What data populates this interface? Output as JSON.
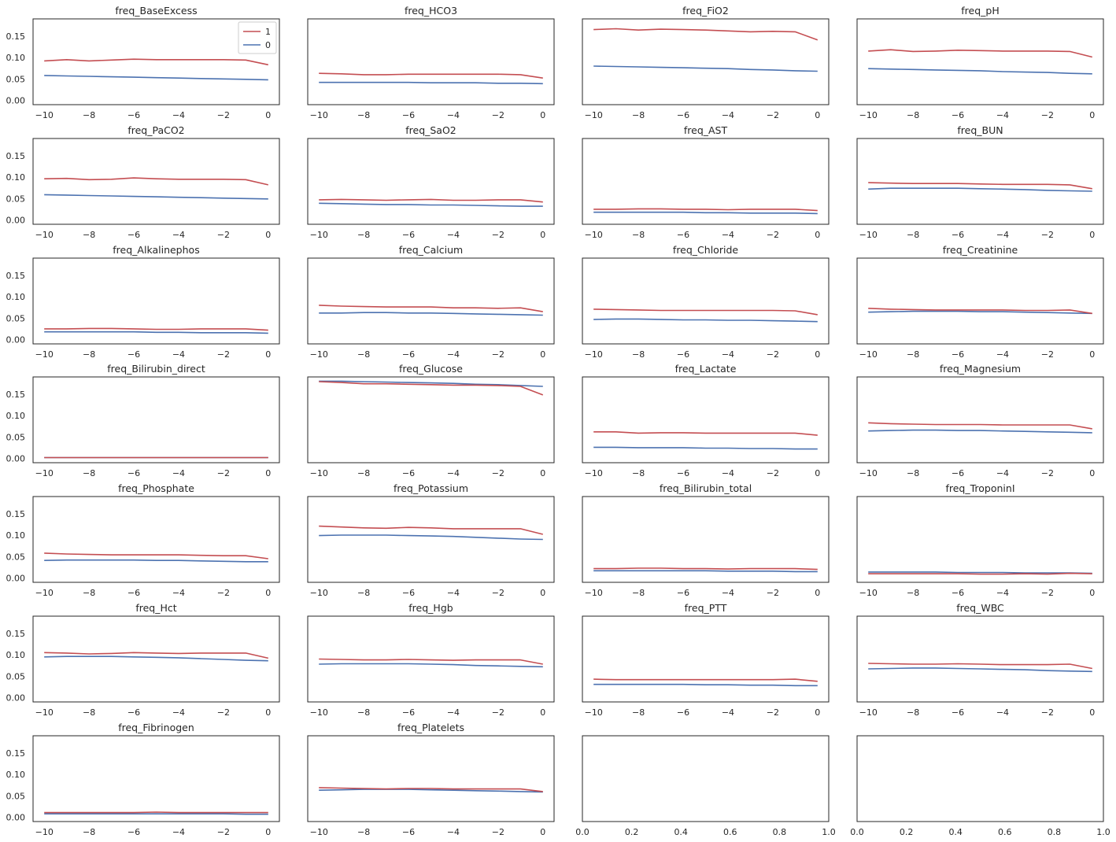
{
  "chart_data": {
    "type": "line",
    "layout_rows": 7,
    "layout_cols": 4,
    "shared_ylim": [
      -0.01,
      0.19
    ],
    "yticks": [
      "0.00",
      "0.05",
      "0.10",
      "0.15"
    ],
    "ytick_values": [
      0.0,
      0.05,
      0.1,
      0.15
    ],
    "grid": false,
    "legend": {
      "placement": "upper-right",
      "panel": 0,
      "entries": [
        {
          "label": "1",
          "color": "#c44e52"
        },
        {
          "label": "0",
          "color": "#4c72b0"
        }
      ]
    },
    "series_colors": {
      "1": "#c44e52",
      "0": "#4c72b0"
    },
    "x": [
      -10,
      -9,
      -8,
      -7,
      -6,
      -5,
      -4,
      -3,
      -2,
      -1,
      0
    ],
    "xticks": [
      "−10",
      "−8",
      "−6",
      "−4",
      "−2",
      "0"
    ],
    "xtick_values": [
      -10,
      -8,
      -6,
      -4,
      -2,
      0
    ],
    "xlim": [
      -10.5,
      0.5
    ],
    "empty_xticks": [
      "0.0",
      "0.2",
      "0.4",
      "0.6",
      "0.8",
      "1.0"
    ],
    "empty_xtick_values": [
      0,
      0.2,
      0.4,
      0.6,
      0.8,
      1.0
    ],
    "empty_xlim": [
      0,
      1
    ],
    "panels": [
      {
        "title": "freq_BaseExcess",
        "s1": [
          0.092,
          0.095,
          0.092,
          0.094,
          0.096,
          0.095,
          0.095,
          0.095,
          0.095,
          0.094,
          0.083
        ],
        "s0": [
          0.058,
          0.057,
          0.056,
          0.055,
          0.054,
          0.053,
          0.052,
          0.051,
          0.05,
          0.049,
          0.048
        ]
      },
      {
        "title": "freq_HCO3",
        "s1": [
          0.063,
          0.062,
          0.06,
          0.06,
          0.061,
          0.061,
          0.061,
          0.061,
          0.061,
          0.06,
          0.052
        ],
        "s0": [
          0.042,
          0.042,
          0.042,
          0.042,
          0.042,
          0.041,
          0.041,
          0.041,
          0.04,
          0.04,
          0.039
        ]
      },
      {
        "title": "freq_FiO2",
        "s1": [
          0.165,
          0.167,
          0.164,
          0.166,
          0.165,
          0.164,
          0.162,
          0.16,
          0.161,
          0.16,
          0.141
        ],
        "s0": [
          0.08,
          0.079,
          0.078,
          0.077,
          0.076,
          0.075,
          0.074,
          0.072,
          0.071,
          0.069,
          0.068
        ]
      },
      {
        "title": "freq_pH",
        "s1": [
          0.115,
          0.118,
          0.114,
          0.115,
          0.117,
          0.116,
          0.115,
          0.115,
          0.115,
          0.114,
          0.101
        ],
        "s0": [
          0.074,
          0.073,
          0.072,
          0.071,
          0.07,
          0.069,
          0.067,
          0.066,
          0.065,
          0.063,
          0.062
        ]
      },
      {
        "title": "freq_PaCO2",
        "s1": [
          0.096,
          0.097,
          0.094,
          0.095,
          0.098,
          0.096,
          0.095,
          0.095,
          0.095,
          0.094,
          0.082
        ],
        "s0": [
          0.059,
          0.058,
          0.057,
          0.056,
          0.055,
          0.054,
          0.053,
          0.052,
          0.051,
          0.05,
          0.049
        ]
      },
      {
        "title": "freq_SaO2",
        "s1": [
          0.047,
          0.048,
          0.047,
          0.046,
          0.047,
          0.048,
          0.046,
          0.046,
          0.047,
          0.047,
          0.042
        ],
        "s0": [
          0.039,
          0.038,
          0.037,
          0.036,
          0.036,
          0.035,
          0.035,
          0.034,
          0.033,
          0.032,
          0.032
        ]
      },
      {
        "title": "freq_AST",
        "s1": [
          0.025,
          0.025,
          0.026,
          0.026,
          0.025,
          0.025,
          0.024,
          0.025,
          0.025,
          0.025,
          0.022
        ],
        "s0": [
          0.018,
          0.018,
          0.018,
          0.018,
          0.018,
          0.017,
          0.017,
          0.016,
          0.016,
          0.016,
          0.015
        ]
      },
      {
        "title": "freq_BUN",
        "s1": [
          0.087,
          0.086,
          0.085,
          0.085,
          0.085,
          0.084,
          0.083,
          0.083,
          0.083,
          0.082,
          0.073
        ],
        "s0": [
          0.072,
          0.074,
          0.074,
          0.074,
          0.074,
          0.073,
          0.072,
          0.071,
          0.069,
          0.068,
          0.067
        ]
      },
      {
        "title": "freq_Alkalinephos",
        "s1": [
          0.025,
          0.025,
          0.026,
          0.026,
          0.025,
          0.024,
          0.024,
          0.025,
          0.025,
          0.025,
          0.022
        ],
        "s0": [
          0.018,
          0.018,
          0.018,
          0.018,
          0.018,
          0.017,
          0.017,
          0.016,
          0.016,
          0.016,
          0.015
        ]
      },
      {
        "title": "freq_Calcium",
        "s1": [
          0.08,
          0.078,
          0.077,
          0.076,
          0.076,
          0.076,
          0.074,
          0.074,
          0.073,
          0.074,
          0.065
        ],
        "s0": [
          0.062,
          0.062,
          0.063,
          0.063,
          0.062,
          0.062,
          0.061,
          0.06,
          0.059,
          0.058,
          0.057
        ]
      },
      {
        "title": "freq_Chloride",
        "s1": [
          0.071,
          0.07,
          0.069,
          0.068,
          0.068,
          0.068,
          0.068,
          0.068,
          0.068,
          0.067,
          0.058
        ],
        "s0": [
          0.047,
          0.048,
          0.048,
          0.047,
          0.046,
          0.046,
          0.045,
          0.045,
          0.044,
          0.043,
          0.042
        ]
      },
      {
        "title": "freq_Creatinine",
        "s1": [
          0.073,
          0.071,
          0.07,
          0.069,
          0.069,
          0.069,
          0.069,
          0.068,
          0.068,
          0.069,
          0.061
        ],
        "s0": [
          0.064,
          0.065,
          0.066,
          0.066,
          0.066,
          0.065,
          0.065,
          0.064,
          0.063,
          0.062,
          0.061
        ]
      },
      {
        "title": "freq_Bilirubin_direct",
        "s1": [
          0.002,
          0.002,
          0.002,
          0.002,
          0.002,
          0.002,
          0.002,
          0.002,
          0.002,
          0.002,
          0.002
        ],
        "s0": [
          0.002,
          0.002,
          0.002,
          0.002,
          0.002,
          0.002,
          0.002,
          0.002,
          0.002,
          0.002,
          0.002
        ]
      },
      {
        "title": "freq_Glucose",
        "s1": [
          0.179,
          0.177,
          0.174,
          0.174,
          0.173,
          0.172,
          0.171,
          0.171,
          0.17,
          0.168,
          0.148
        ],
        "s0": [
          0.18,
          0.18,
          0.179,
          0.178,
          0.177,
          0.176,
          0.175,
          0.173,
          0.172,
          0.17,
          0.168
        ]
      },
      {
        "title": "freq_Lactate",
        "s1": [
          0.062,
          0.062,
          0.059,
          0.06,
          0.06,
          0.059,
          0.059,
          0.059,
          0.059,
          0.059,
          0.054
        ],
        "s0": [
          0.026,
          0.026,
          0.025,
          0.025,
          0.025,
          0.024,
          0.024,
          0.023,
          0.023,
          0.022,
          0.022
        ]
      },
      {
        "title": "freq_Magnesium",
        "s1": [
          0.083,
          0.081,
          0.08,
          0.079,
          0.079,
          0.079,
          0.078,
          0.078,
          0.078,
          0.078,
          0.069
        ],
        "s0": [
          0.064,
          0.065,
          0.066,
          0.066,
          0.065,
          0.065,
          0.064,
          0.063,
          0.062,
          0.061,
          0.06
        ]
      },
      {
        "title": "freq_Phosphate",
        "s1": [
          0.058,
          0.056,
          0.055,
          0.054,
          0.054,
          0.054,
          0.054,
          0.053,
          0.052,
          0.052,
          0.045
        ],
        "s0": [
          0.041,
          0.042,
          0.042,
          0.042,
          0.042,
          0.041,
          0.041,
          0.04,
          0.039,
          0.038,
          0.038
        ]
      },
      {
        "title": "freq_Potassium",
        "s1": [
          0.121,
          0.119,
          0.117,
          0.116,
          0.118,
          0.117,
          0.115,
          0.115,
          0.115,
          0.115,
          0.102
        ],
        "s0": [
          0.099,
          0.1,
          0.1,
          0.1,
          0.099,
          0.098,
          0.097,
          0.095,
          0.093,
          0.091,
          0.09
        ]
      },
      {
        "title": "freq_Bilirubin_total",
        "s1": [
          0.022,
          0.022,
          0.023,
          0.023,
          0.022,
          0.022,
          0.021,
          0.022,
          0.022,
          0.022,
          0.02
        ],
        "s0": [
          0.017,
          0.017,
          0.017,
          0.017,
          0.017,
          0.017,
          0.016,
          0.016,
          0.016,
          0.015,
          0.015
        ]
      },
      {
        "title": "freq_TroponinI",
        "s1": [
          0.01,
          0.01,
          0.01,
          0.01,
          0.01,
          0.009,
          0.009,
          0.01,
          0.009,
          0.011,
          0.01
        ],
        "s0": [
          0.014,
          0.014,
          0.014,
          0.014,
          0.013,
          0.013,
          0.013,
          0.012,
          0.012,
          0.012,
          0.011
        ]
      },
      {
        "title": "freq_Hct",
        "s1": [
          0.105,
          0.104,
          0.102,
          0.103,
          0.105,
          0.104,
          0.103,
          0.104,
          0.104,
          0.104,
          0.092
        ],
        "s0": [
          0.095,
          0.096,
          0.096,
          0.096,
          0.095,
          0.094,
          0.093,
          0.091,
          0.089,
          0.087,
          0.086
        ]
      },
      {
        "title": "freq_Hgb",
        "s1": [
          0.09,
          0.089,
          0.088,
          0.088,
          0.089,
          0.088,
          0.087,
          0.088,
          0.088,
          0.088,
          0.078
        ],
        "s0": [
          0.078,
          0.079,
          0.079,
          0.079,
          0.079,
          0.078,
          0.077,
          0.075,
          0.074,
          0.073,
          0.072
        ]
      },
      {
        "title": "freq_PTT",
        "s1": [
          0.043,
          0.042,
          0.042,
          0.042,
          0.042,
          0.042,
          0.042,
          0.042,
          0.042,
          0.043,
          0.038
        ],
        "s0": [
          0.031,
          0.031,
          0.031,
          0.031,
          0.031,
          0.03,
          0.03,
          0.029,
          0.029,
          0.028,
          0.028
        ]
      },
      {
        "title": "freq_WBC",
        "s1": [
          0.08,
          0.079,
          0.078,
          0.078,
          0.079,
          0.078,
          0.077,
          0.077,
          0.077,
          0.078,
          0.068
        ],
        "s0": [
          0.067,
          0.068,
          0.069,
          0.069,
          0.068,
          0.067,
          0.066,
          0.065,
          0.063,
          0.062,
          0.061
        ]
      },
      {
        "title": "freq_Fibrinogen",
        "s1": [
          0.011,
          0.011,
          0.011,
          0.011,
          0.011,
          0.012,
          0.011,
          0.011,
          0.011,
          0.011,
          0.011
        ],
        "s0": [
          0.008,
          0.008,
          0.008,
          0.008,
          0.008,
          0.008,
          0.008,
          0.008,
          0.008,
          0.007,
          0.007
        ]
      },
      {
        "title": "freq_Platelets",
        "s1": [
          0.069,
          0.068,
          0.067,
          0.066,
          0.067,
          0.067,
          0.066,
          0.066,
          0.066,
          0.066,
          0.06
        ],
        "s0": [
          0.063,
          0.064,
          0.065,
          0.065,
          0.065,
          0.064,
          0.063,
          0.062,
          0.061,
          0.06,
          0.059
        ]
      },
      {
        "title": "",
        "s1": [],
        "s0": []
      },
      {
        "title": "",
        "s1": [],
        "s0": []
      }
    ]
  }
}
